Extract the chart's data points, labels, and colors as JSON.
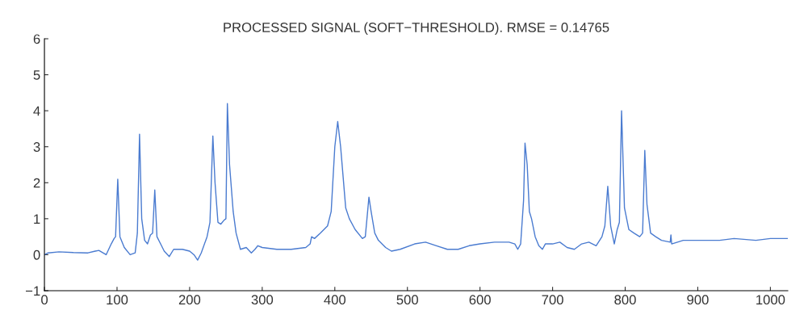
{
  "chart_data": {
    "type": "line",
    "title": "PROCESSED SIGNAL (SOFT−THRESHOLD). RMSE = 0.14765",
    "xlim": [
      0,
      1024
    ],
    "xticks": [
      0,
      100,
      200,
      300,
      400,
      500,
      600,
      700,
      800,
      900,
      1000
    ],
    "ylim": [
      -1,
      6
    ],
    "yticks": [
      -1,
      0,
      1,
      2,
      3,
      4,
      5,
      6
    ],
    "grid": false,
    "legend": false,
    "series": [
      {
        "color": "#4a7bd0",
        "x": [
          0,
          5,
          20,
          40,
          60,
          70,
          75,
          85,
          92,
          96,
          98,
          101,
          104,
          110,
          118,
          125,
          128,
          131,
          134,
          138,
          142,
          146,
          149,
          152,
          155,
          160,
          165,
          172,
          178,
          190,
          200,
          206,
          211,
          216,
          224,
          228,
          232,
          235,
          239,
          243,
          247,
          250,
          252,
          255,
          260,
          264,
          270,
          278,
          285,
          290,
          294,
          300,
          320,
          340,
          360,
          366,
          368,
          372,
          380,
          390,
          395,
          400,
          404,
          408,
          415,
          420,
          428,
          438,
          442,
          447,
          450,
          455,
          460,
          470,
          478,
          490,
          510,
          525,
          540,
          555,
          570,
          585,
          600,
          620,
          640,
          648,
          652,
          656,
          660,
          662,
          665,
          668,
          671,
          676,
          681,
          686,
          690,
          700,
          710,
          720,
          730,
          740,
          750,
          760,
          768,
          772,
          776,
          780,
          785,
          789,
          792,
          795,
          799,
          805,
          812,
          820,
          824,
          827,
          830,
          835,
          842,
          850,
          862,
          863,
          864,
          880,
          900,
          930,
          950,
          980,
          1000,
          1024
        ],
        "values": [
          0.0,
          0.05,
          0.08,
          0.06,
          0.05,
          0.1,
          0.12,
          0.0,
          0.3,
          0.45,
          0.5,
          2.1,
          0.5,
          0.2,
          0.0,
          0.05,
          0.6,
          3.35,
          1.0,
          0.4,
          0.3,
          0.55,
          0.6,
          1.8,
          0.5,
          0.3,
          0.1,
          -0.05,
          0.15,
          0.15,
          0.1,
          0.0,
          -0.15,
          0.05,
          0.5,
          0.9,
          3.3,
          2.0,
          0.9,
          0.85,
          0.95,
          1.0,
          4.2,
          2.5,
          1.2,
          0.6,
          0.15,
          0.2,
          0.05,
          0.15,
          0.25,
          0.2,
          0.15,
          0.15,
          0.2,
          0.3,
          0.5,
          0.45,
          0.6,
          0.8,
          1.2,
          3.0,
          3.7,
          3.0,
          1.3,
          1.0,
          0.7,
          0.45,
          0.5,
          1.6,
          1.2,
          0.6,
          0.4,
          0.2,
          0.1,
          0.15,
          0.3,
          0.35,
          0.25,
          0.15,
          0.15,
          0.25,
          0.3,
          0.35,
          0.35,
          0.3,
          0.15,
          0.3,
          1.5,
          3.1,
          2.5,
          1.2,
          1.0,
          0.5,
          0.25,
          0.15,
          0.3,
          0.3,
          0.35,
          0.2,
          0.15,
          0.3,
          0.35,
          0.25,
          0.5,
          0.8,
          1.9,
          0.8,
          0.3,
          0.7,
          0.9,
          4.0,
          1.3,
          0.7,
          0.6,
          0.5,
          0.6,
          2.9,
          1.4,
          0.6,
          0.5,
          0.4,
          0.35,
          0.55,
          0.3,
          0.4,
          0.4,
          0.4,
          0.45,
          0.4,
          0.45,
          0.45
        ]
      }
    ]
  }
}
